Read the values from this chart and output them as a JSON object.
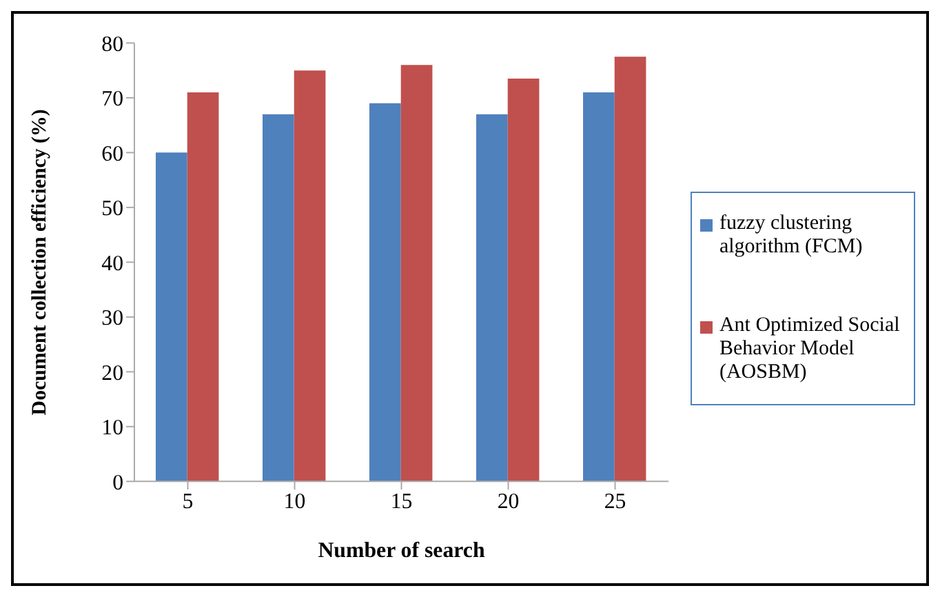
{
  "chart_data": {
    "type": "bar",
    "xlabel": "Number of search",
    "ylabel": "Document collection efficiency (%)",
    "categories": [
      "5",
      "10",
      "15",
      "20",
      "25"
    ],
    "series": [
      {
        "name": "fuzzy clustering algorithm (FCM)",
        "color": "#4f81bd",
        "values": [
          60,
          67,
          69,
          67,
          71
        ]
      },
      {
        "name": "Ant Optimized Social Behavior Model (AOSBM)",
        "color": "#c0504d",
        "values": [
          71,
          75,
          76,
          73.5,
          77.5
        ]
      }
    ],
    "ylim": [
      0,
      80
    ],
    "yticks": [
      0,
      10,
      20,
      30,
      40,
      50,
      60,
      70,
      80
    ],
    "grid": false,
    "legend": "right"
  }
}
